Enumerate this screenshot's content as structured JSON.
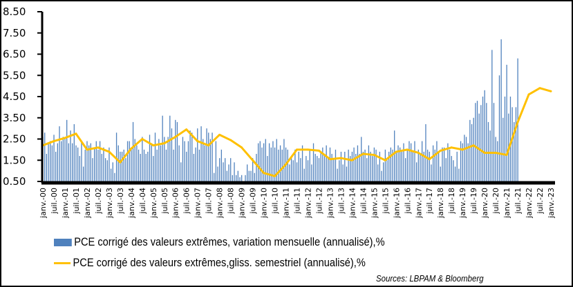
{
  "chart_data": {
    "type": "bar+line",
    "title": "",
    "xlabel": "",
    "ylabel": "",
    "ylim": [
      0.5,
      8.5
    ],
    "yticks": [
      "0.50",
      "1.50",
      "2.50",
      "3.50",
      "4.50",
      "5.50",
      "6.50",
      "7.50",
      "8.50"
    ],
    "xticks": [
      "janv.-00",
      "juil.-00",
      "janv.-01",
      "juil.-01",
      "janv.-02",
      "juil.-02",
      "janv.-03",
      "juil.-03",
      "janv.-04",
      "juil.-04",
      "janv.-05",
      "juil.-05",
      "janv.-06",
      "juil.-06",
      "janv.-07",
      "juil.-07",
      "janv.-08",
      "juil.-08",
      "janv.-09",
      "juil.-09",
      "janv.-10",
      "juil.-10",
      "janv.-11",
      "juil.-11",
      "janv.-12",
      "juil.-12",
      "janv.-13",
      "juil.-13",
      "janv.-14",
      "juil.-14",
      "janv.-15",
      "juil.-15",
      "janv.-16",
      "juil.-16",
      "janv.-17",
      "juil.-17",
      "janv.-18",
      "juil.-18",
      "janv.-19",
      "juil.-19",
      "janv.-20",
      "juil.-20",
      "janv.-21",
      "juil.-21",
      "janv.-22",
      "juil.-22",
      "janv.-23"
    ],
    "series": [
      {
        "name": "PCE corrigé des valeurs extrêmes, variation mensuelle (annualisé),%",
        "type": "bar",
        "color": "#4f81bd",
        "values": [
          2.6,
          2.8,
          1.8,
          2.3,
          2.4,
          2.2,
          2.7,
          1.9,
          2.3,
          3.1,
          2.4,
          2.6,
          2.5,
          3.4,
          2.3,
          2.9,
          2.3,
          3.2,
          2.2,
          2.1,
          1.7,
          2.4,
          1.2,
          2.0,
          2.4,
          2.2,
          2.3,
          1.6,
          2.1,
          2.4,
          2.0,
          2.4,
          1.8,
          2.1,
          1.6,
          1.5,
          2.1,
          1.1,
          1.4,
          0.9,
          2.8,
          2.2,
          1.9,
          1.9,
          2.0,
          1.6,
          2.4,
          2.4,
          2.0,
          3.3,
          2.5,
          2.2,
          2.0,
          1.8,
          2.6,
          2.0,
          1.8,
          1.9,
          2.7,
          2.3,
          1.7,
          2.8,
          2.0,
          2.5,
          2.2,
          3.6,
          2.6,
          2.0,
          2.6,
          3.6,
          3.0,
          2.0,
          3.4,
          3.3,
          2.2,
          1.4,
          2.6,
          2.4,
          1.9,
          2.4,
          2.9,
          2.8,
          1.8,
          2.1,
          3.0,
          2.0,
          3.1,
          2.5,
          2.2,
          3.0,
          2.8,
          2.5,
          2.8,
          0.9,
          2.4,
          1.2,
          1.6,
          2.0,
          1.4,
          1.6,
          1.0,
          1.3,
          1.6,
          0.8,
          1.4,
          0.8,
          1.0,
          0.7,
          0.8,
          0.5,
          0.8,
          1.3,
          1.0,
          1.0,
          1.6,
          0.9,
          1.8,
          2.3,
          2.4,
          2.1,
          2.3,
          2.5,
          1.7,
          2.3,
          2.1,
          2.4,
          2.1,
          2.5,
          2.0,
          2.2,
          2.0,
          2.5,
          2.1,
          2.0,
          1.3,
          1.6,
          1.5,
          2.0,
          1.4,
          1.9,
          1.6,
          2.2,
          1.1,
          1.7,
          1.5,
          2.0,
          1.3,
          2.3,
          1.8,
          1.7,
          1.6,
          1.9,
          2.1,
          1.7,
          2.2,
          1.6,
          2.1,
          1.8,
          1.6,
          2.0,
          1.1,
          1.5,
          1.9,
          1.3,
          1.9,
          1.2,
          2.0,
          1.7,
          1.9,
          2.1,
          1.8,
          2.2,
          1.8,
          2.6,
          1.9,
          2.0,
          1.6,
          2.2,
          1.9,
          1.7,
          2.1,
          2.0,
          1.3,
          1.9,
          1.0,
          1.4,
          2.0,
          1.5,
          1.9,
          2.1,
          2.0,
          2.9,
          1.9,
          2.2,
          2.1,
          1.9,
          2.3,
          1.6,
          2.0,
          2.4,
          2.3,
          1.9,
          2.4,
          1.4,
          2.0,
          1.8,
          2.4,
          1.9,
          3.2,
          2.0,
          1.9,
          1.3,
          2.2,
          2.0,
          2.4,
          1.9,
          1.2,
          2.1,
          2.1,
          1.6,
          2.3,
          2.0,
          1.7,
          1.5,
          1.2,
          1.9,
          1.1,
          2.4,
          2.3,
          2.7,
          2.6,
          2.3,
          3.4,
          3.2,
          3.5,
          4.2,
          4.3,
          3.7,
          4.1,
          4.5,
          4.8,
          4.2,
          3.3,
          2.9,
          6.7,
          4.2,
          2.6,
          2.4,
          5.5,
          7.2,
          3.5,
          4.5,
          6.0,
          3.7,
          4.5,
          4.0,
          3.3,
          4.0,
          6.3
        ],
        "note": "monthly values approximated from bar heights"
      },
      {
        "name": "PCE corrigé des valeurs extrêmes,gliss. semestriel (annualisé),%",
        "type": "line",
        "color": "#ffc000",
        "x": [
          "janv.-00",
          "juil.-00",
          "janv.-01",
          "juil.-01",
          "janv.-02",
          "juil.-02",
          "janv.-03",
          "juil.-03",
          "janv.-04",
          "juil.-04",
          "janv.-05",
          "juil.-05",
          "janv.-06",
          "juil.-06",
          "janv.-07",
          "juil.-07",
          "janv.-08",
          "juil.-08",
          "janv.-09",
          "juil.-09",
          "janv.-10",
          "juil.-10",
          "janv.-11",
          "juil.-11",
          "janv.-12",
          "juil.-12",
          "janv.-13",
          "juil.-13",
          "janv.-14",
          "juil.-14",
          "janv.-15",
          "juil.-15",
          "janv.-16",
          "juil.-16",
          "janv.-17",
          "juil.-17",
          "janv.-18",
          "juil.-18",
          "janv.-19",
          "juil.-19",
          "janv.-20",
          "juil.-20",
          "janv.-21",
          "juil.-21",
          "janv.-22",
          "juil.-22",
          "janv.-23"
        ],
        "values": [
          2.2,
          2.4,
          2.55,
          2.75,
          2.0,
          2.1,
          1.9,
          1.4,
          2.05,
          2.5,
          2.2,
          2.3,
          2.6,
          2.95,
          2.4,
          2.2,
          2.7,
          2.45,
          2.1,
          1.5,
          0.9,
          0.75,
          1.3,
          2.0,
          2.0,
          1.95,
          1.55,
          1.6,
          1.5,
          1.8,
          1.75,
          1.5,
          1.9,
          2.0,
          1.85,
          1.55,
          1.95,
          2.1,
          2.0,
          2.2,
          1.85,
          1.85,
          1.75,
          3.3,
          4.6,
          4.9,
          4.75
        ]
      }
    ],
    "legend_position": "bottom",
    "grid": false
  },
  "legend": {
    "bar_label": "PCE corrigé des valeurs extrêmes, variation mensuelle (annualisé),%",
    "line_label": "PCE corrigé des valeurs extrêmes,gliss. semestriel (annualisé),%"
  },
  "source": "Sources: LBPAM & Bloomberg"
}
